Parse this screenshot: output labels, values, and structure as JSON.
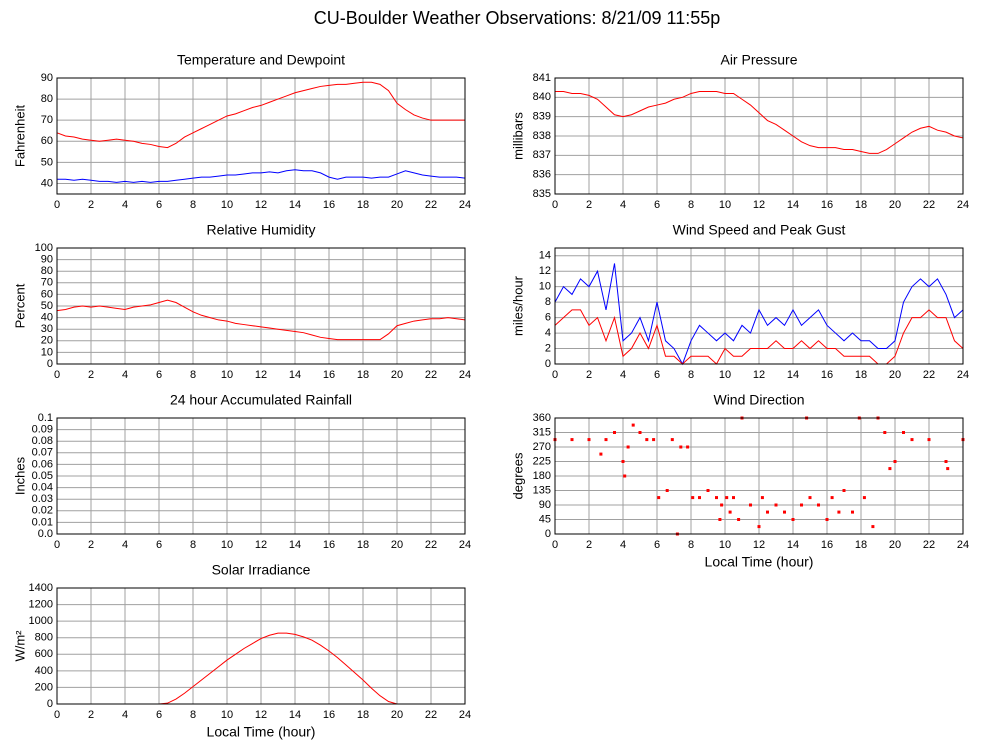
{
  "title": "CU-Boulder Weather Observations: 8/21/09 11:55p",
  "chart_data": [
    {
      "type": "line",
      "title": "Temperature and Dewpoint",
      "y_label": "Fahrenheit",
      "x": [
        0,
        0.5,
        1,
        1.5,
        2,
        2.5,
        3,
        3.5,
        4,
        4.5,
        5,
        5.5,
        6,
        6.5,
        7,
        7.5,
        8,
        8.5,
        9,
        9.5,
        10,
        10.5,
        11,
        11.5,
        12,
        12.5,
        13,
        13.5,
        14,
        14.5,
        15,
        15.5,
        16,
        16.5,
        17,
        17.5,
        18,
        18.5,
        19,
        19.5,
        20,
        20.5,
        21,
        21.5,
        22,
        22.5,
        23,
        23.5,
        24
      ],
      "series": [
        {
          "color": "#ff0000",
          "values": [
            64,
            62.5,
            62,
            61,
            60.5,
            60,
            60.5,
            61,
            60.5,
            60,
            59,
            58.5,
            57.5,
            57,
            59,
            62,
            64,
            66,
            68,
            70,
            72,
            73,
            74.5,
            76,
            77,
            78.5,
            80,
            81.5,
            83,
            84,
            85,
            86,
            86.5,
            87,
            87,
            87.5,
            88,
            88,
            87,
            84,
            78,
            75,
            72.5,
            71,
            70,
            70,
            70,
            70,
            70
          ]
        },
        {
          "color": "#0000ff",
          "values": [
            42,
            42,
            41.5,
            42,
            41.5,
            41,
            41,
            40.5,
            41,
            40.5,
            41,
            40.5,
            41,
            41,
            41.5,
            42,
            42.5,
            43,
            43,
            43.5,
            44,
            44,
            44.5,
            45,
            45,
            45.5,
            45,
            46,
            46.5,
            46,
            46,
            45,
            43,
            42,
            43,
            43,
            43,
            42.5,
            43,
            43,
            44.5,
            46,
            45,
            44,
            43.5,
            43,
            43,
            43,
            42.5
          ]
        }
      ],
      "xlim": [
        0,
        24
      ],
      "xticks": [
        0,
        2,
        4,
        6,
        8,
        10,
        12,
        14,
        16,
        18,
        20,
        22,
        24
      ],
      "ylim": [
        35,
        90
      ],
      "yticks": [
        40,
        50,
        60,
        70,
        80,
        90
      ],
      "grid": true
    },
    {
      "type": "line",
      "title": "Air Pressure",
      "y_label": "millibars",
      "x": [
        0,
        0.5,
        1,
        1.5,
        2,
        2.5,
        3,
        3.5,
        4,
        4.5,
        5,
        5.5,
        6,
        6.5,
        7,
        7.5,
        8,
        8.5,
        9,
        9.5,
        10,
        10.5,
        11,
        11.5,
        12,
        12.5,
        13,
        13.5,
        14,
        14.5,
        15,
        15.5,
        16,
        16.5,
        17,
        17.5,
        18,
        18.5,
        19,
        19.5,
        20,
        20.5,
        21,
        21.5,
        22,
        22.5,
        23,
        23.5,
        24
      ],
      "series": [
        {
          "color": "#ff0000",
          "values": [
            840.3,
            840.3,
            840.2,
            840.2,
            840.1,
            839.9,
            839.5,
            839.1,
            839.0,
            839.1,
            839.3,
            839.5,
            839.6,
            839.7,
            839.9,
            840.0,
            840.2,
            840.3,
            840.3,
            840.3,
            840.2,
            840.2,
            839.9,
            839.6,
            839.2,
            838.8,
            838.6,
            838.3,
            838.0,
            837.7,
            837.5,
            837.4,
            837.4,
            837.4,
            837.3,
            837.3,
            837.2,
            837.1,
            837.1,
            837.3,
            837.6,
            837.9,
            838.2,
            838.4,
            838.5,
            838.3,
            838.2,
            838.0,
            837.9
          ]
        }
      ],
      "xlim": [
        0,
        24
      ],
      "xticks": [
        0,
        2,
        4,
        6,
        8,
        10,
        12,
        14,
        16,
        18,
        20,
        22,
        24
      ],
      "ylim": [
        835,
        841
      ],
      "yticks": [
        835,
        836,
        837,
        838,
        839,
        840,
        841
      ],
      "grid": true
    },
    {
      "type": "line",
      "title": "Relative Humidity",
      "y_label": "Percent",
      "x": [
        0,
        0.5,
        1,
        1.5,
        2,
        2.5,
        3,
        3.5,
        4,
        4.5,
        5,
        5.5,
        6,
        6.5,
        7,
        7.5,
        8,
        8.5,
        9,
        9.5,
        10,
        10.5,
        11,
        11.5,
        12,
        12.5,
        13,
        13.5,
        14,
        14.5,
        15,
        15.5,
        16,
        16.5,
        17,
        17.5,
        18,
        18.5,
        19,
        19.5,
        20,
        20.5,
        21,
        21.5,
        22,
        22.5,
        23,
        23.5,
        24
      ],
      "series": [
        {
          "color": "#ff0000",
          "values": [
            46,
            47,
            49,
            50,
            49,
            50,
            49,
            48,
            47,
            49,
            50,
            51,
            53,
            55,
            53,
            49,
            45,
            42,
            40,
            38,
            37,
            35,
            34,
            33,
            32,
            31,
            30,
            29,
            28,
            27,
            25,
            23,
            22,
            21,
            21,
            21,
            21,
            21,
            21,
            26,
            33,
            35,
            37,
            38,
            39,
            39,
            40,
            39,
            38
          ]
        }
      ],
      "xlim": [
        0,
        24
      ],
      "xticks": [
        0,
        2,
        4,
        6,
        8,
        10,
        12,
        14,
        16,
        18,
        20,
        22,
        24
      ],
      "ylim": [
        0,
        100
      ],
      "yticks": [
        0,
        10,
        20,
        30,
        40,
        50,
        60,
        70,
        80,
        90,
        100
      ],
      "grid": true
    },
    {
      "type": "line",
      "title": "Wind Speed and Peak Gust",
      "y_label": "miles/hour",
      "x": [
        0,
        0.5,
        1,
        1.5,
        2,
        2.5,
        3,
        3.5,
        4,
        4.5,
        5,
        5.5,
        6,
        6.5,
        7,
        7.5,
        8,
        8.5,
        9,
        9.5,
        10,
        10.5,
        11,
        11.5,
        12,
        12.5,
        13,
        13.5,
        14,
        14.5,
        15,
        15.5,
        16,
        16.5,
        17,
        17.5,
        18,
        18.5,
        19,
        19.5,
        20,
        20.5,
        21,
        21.5,
        22,
        22.5,
        23,
        23.5,
        24
      ],
      "series": [
        {
          "color": "#0000ff",
          "values": [
            8,
            10,
            9,
            11,
            10,
            12,
            7,
            13,
            3,
            4,
            6,
            3,
            8,
            3,
            2,
            0,
            3,
            5,
            4,
            3,
            4,
            3,
            5,
            4,
            7,
            5,
            6,
            5,
            7,
            5,
            6,
            7,
            5,
            4,
            3,
            4,
            3,
            3,
            2,
            2,
            3,
            8,
            10,
            11,
            10,
            11,
            9,
            6,
            7
          ]
        },
        {
          "color": "#ff0000",
          "values": [
            5,
            6,
            7,
            7,
            5,
            6,
            3,
            6,
            1,
            2,
            4,
            2,
            5,
            1,
            1,
            0,
            1,
            1,
            1,
            0,
            2,
            1,
            1,
            2,
            2,
            2,
            3,
            2,
            2,
            3,
            2,
            3,
            2,
            2,
            1,
            1,
            1,
            1,
            0,
            0,
            1,
            4,
            6,
            6,
            7,
            6,
            6,
            3,
            2
          ]
        }
      ],
      "xlim": [
        0,
        24
      ],
      "xticks": [
        0,
        2,
        4,
        6,
        8,
        10,
        12,
        14,
        16,
        18,
        20,
        22,
        24
      ],
      "ylim": [
        0,
        15
      ],
      "yticks": [
        0,
        2,
        4,
        6,
        8,
        10,
        12,
        14
      ],
      "grid": true
    },
    {
      "type": "line",
      "title": "24 hour Accumulated Rainfall",
      "y_label": "Inches",
      "x": [
        0,
        24
      ],
      "series": [
        {
          "color": "#ff0000",
          "values": [
            0,
            0
          ]
        }
      ],
      "xlim": [
        0,
        24
      ],
      "xticks": [
        0,
        2,
        4,
        6,
        8,
        10,
        12,
        14,
        16,
        18,
        20,
        22,
        24
      ],
      "ylim": [
        0,
        0.1
      ],
      "yticks": [
        {
          "value": 0,
          "label": "0.0"
        },
        0.01,
        0.02,
        0.03,
        0.04,
        0.05,
        0.06,
        0.07,
        0.08,
        0.09,
        0.1
      ],
      "grid": true
    },
    {
      "type": "scatter",
      "title": "Wind Direction",
      "y_label": "degrees",
      "x_label": "Local Time (hour)",
      "x": [
        0,
        1,
        2,
        2.7,
        3,
        3.5,
        4,
        4.1,
        4.3,
        4.6,
        5,
        5.4,
        5.8,
        6.1,
        6.6,
        6.9,
        7.2,
        7.4,
        7.8,
        8.1,
        8.5,
        9,
        9.5,
        9.7,
        9.8,
        10.1,
        10.3,
        10.5,
        10.8,
        11,
        11.5,
        12,
        12.2,
        12.5,
        13,
        13.5,
        14,
        14.5,
        14.8,
        15,
        15.5,
        16,
        16.3,
        16.7,
        17,
        17.5,
        17.9,
        18.2,
        18.7,
        19,
        19.4,
        19.7,
        20,
        20.5,
        21,
        22,
        23,
        23.1,
        24
      ],
      "series": [
        {
          "color": "#ff0000",
          "values": [
            293,
            293,
            293,
            248,
            293,
            315,
            225,
            180,
            270,
            338,
            315,
            293,
            293,
            113,
            135,
            293,
            0,
            270,
            270,
            113,
            113,
            135,
            113,
            45,
            90,
            113,
            68,
            113,
            45,
            360,
            90,
            23,
            113,
            68,
            90,
            68,
            45,
            90,
            360,
            113,
            90,
            45,
            113,
            68,
            135,
            68,
            360,
            113,
            23,
            360,
            315,
            203,
            225,
            315,
            293,
            293,
            225,
            203,
            293
          ]
        }
      ],
      "xlim": [
        0,
        24
      ],
      "xticks": [
        0,
        2,
        4,
        6,
        8,
        10,
        12,
        14,
        16,
        18,
        20,
        22,
        24
      ],
      "ylim": [
        0,
        360
      ],
      "yticks": [
        0,
        45,
        90,
        135,
        180,
        225,
        270,
        315,
        360
      ],
      "grid": true
    },
    {
      "type": "line",
      "title": "Solar Irradiance",
      "y_label": "W/m²",
      "x_label": "Local Time (hour)",
      "x": [
        0,
        0.5,
        1,
        1.5,
        2,
        2.5,
        3,
        3.5,
        4,
        4.5,
        5,
        5.5,
        6,
        6.5,
        7,
        7.5,
        8,
        8.5,
        9,
        9.5,
        10,
        10.5,
        11,
        11.5,
        12,
        12.5,
        13,
        13.5,
        14,
        14.5,
        15,
        15.5,
        16,
        16.5,
        17,
        17.5,
        18,
        18.5,
        19,
        19.5,
        20,
        20.5,
        21,
        21.5,
        22,
        22.5,
        23,
        23.5,
        24
      ],
      "series": [
        {
          "color": "#ff0000",
          "values": [
            0,
            0,
            0,
            0,
            0,
            0,
            0,
            0,
            0,
            0,
            0,
            0,
            0,
            10,
            60,
            130,
            210,
            290,
            370,
            450,
            530,
            600,
            670,
            730,
            790,
            830,
            855,
            855,
            840,
            810,
            770,
            710,
            640,
            560,
            470,
            380,
            290,
            190,
            100,
            30,
            0,
            0,
            0,
            0,
            0,
            0,
            0,
            0,
            0
          ]
        }
      ],
      "xlim": [
        0,
        24
      ],
      "xticks": [
        0,
        2,
        4,
        6,
        8,
        10,
        12,
        14,
        16,
        18,
        20,
        22,
        24
      ],
      "ylim": [
        0,
        1400
      ],
      "yticks": [
        0,
        200,
        400,
        600,
        800,
        1000,
        1200,
        1400
      ],
      "grid": true
    }
  ]
}
